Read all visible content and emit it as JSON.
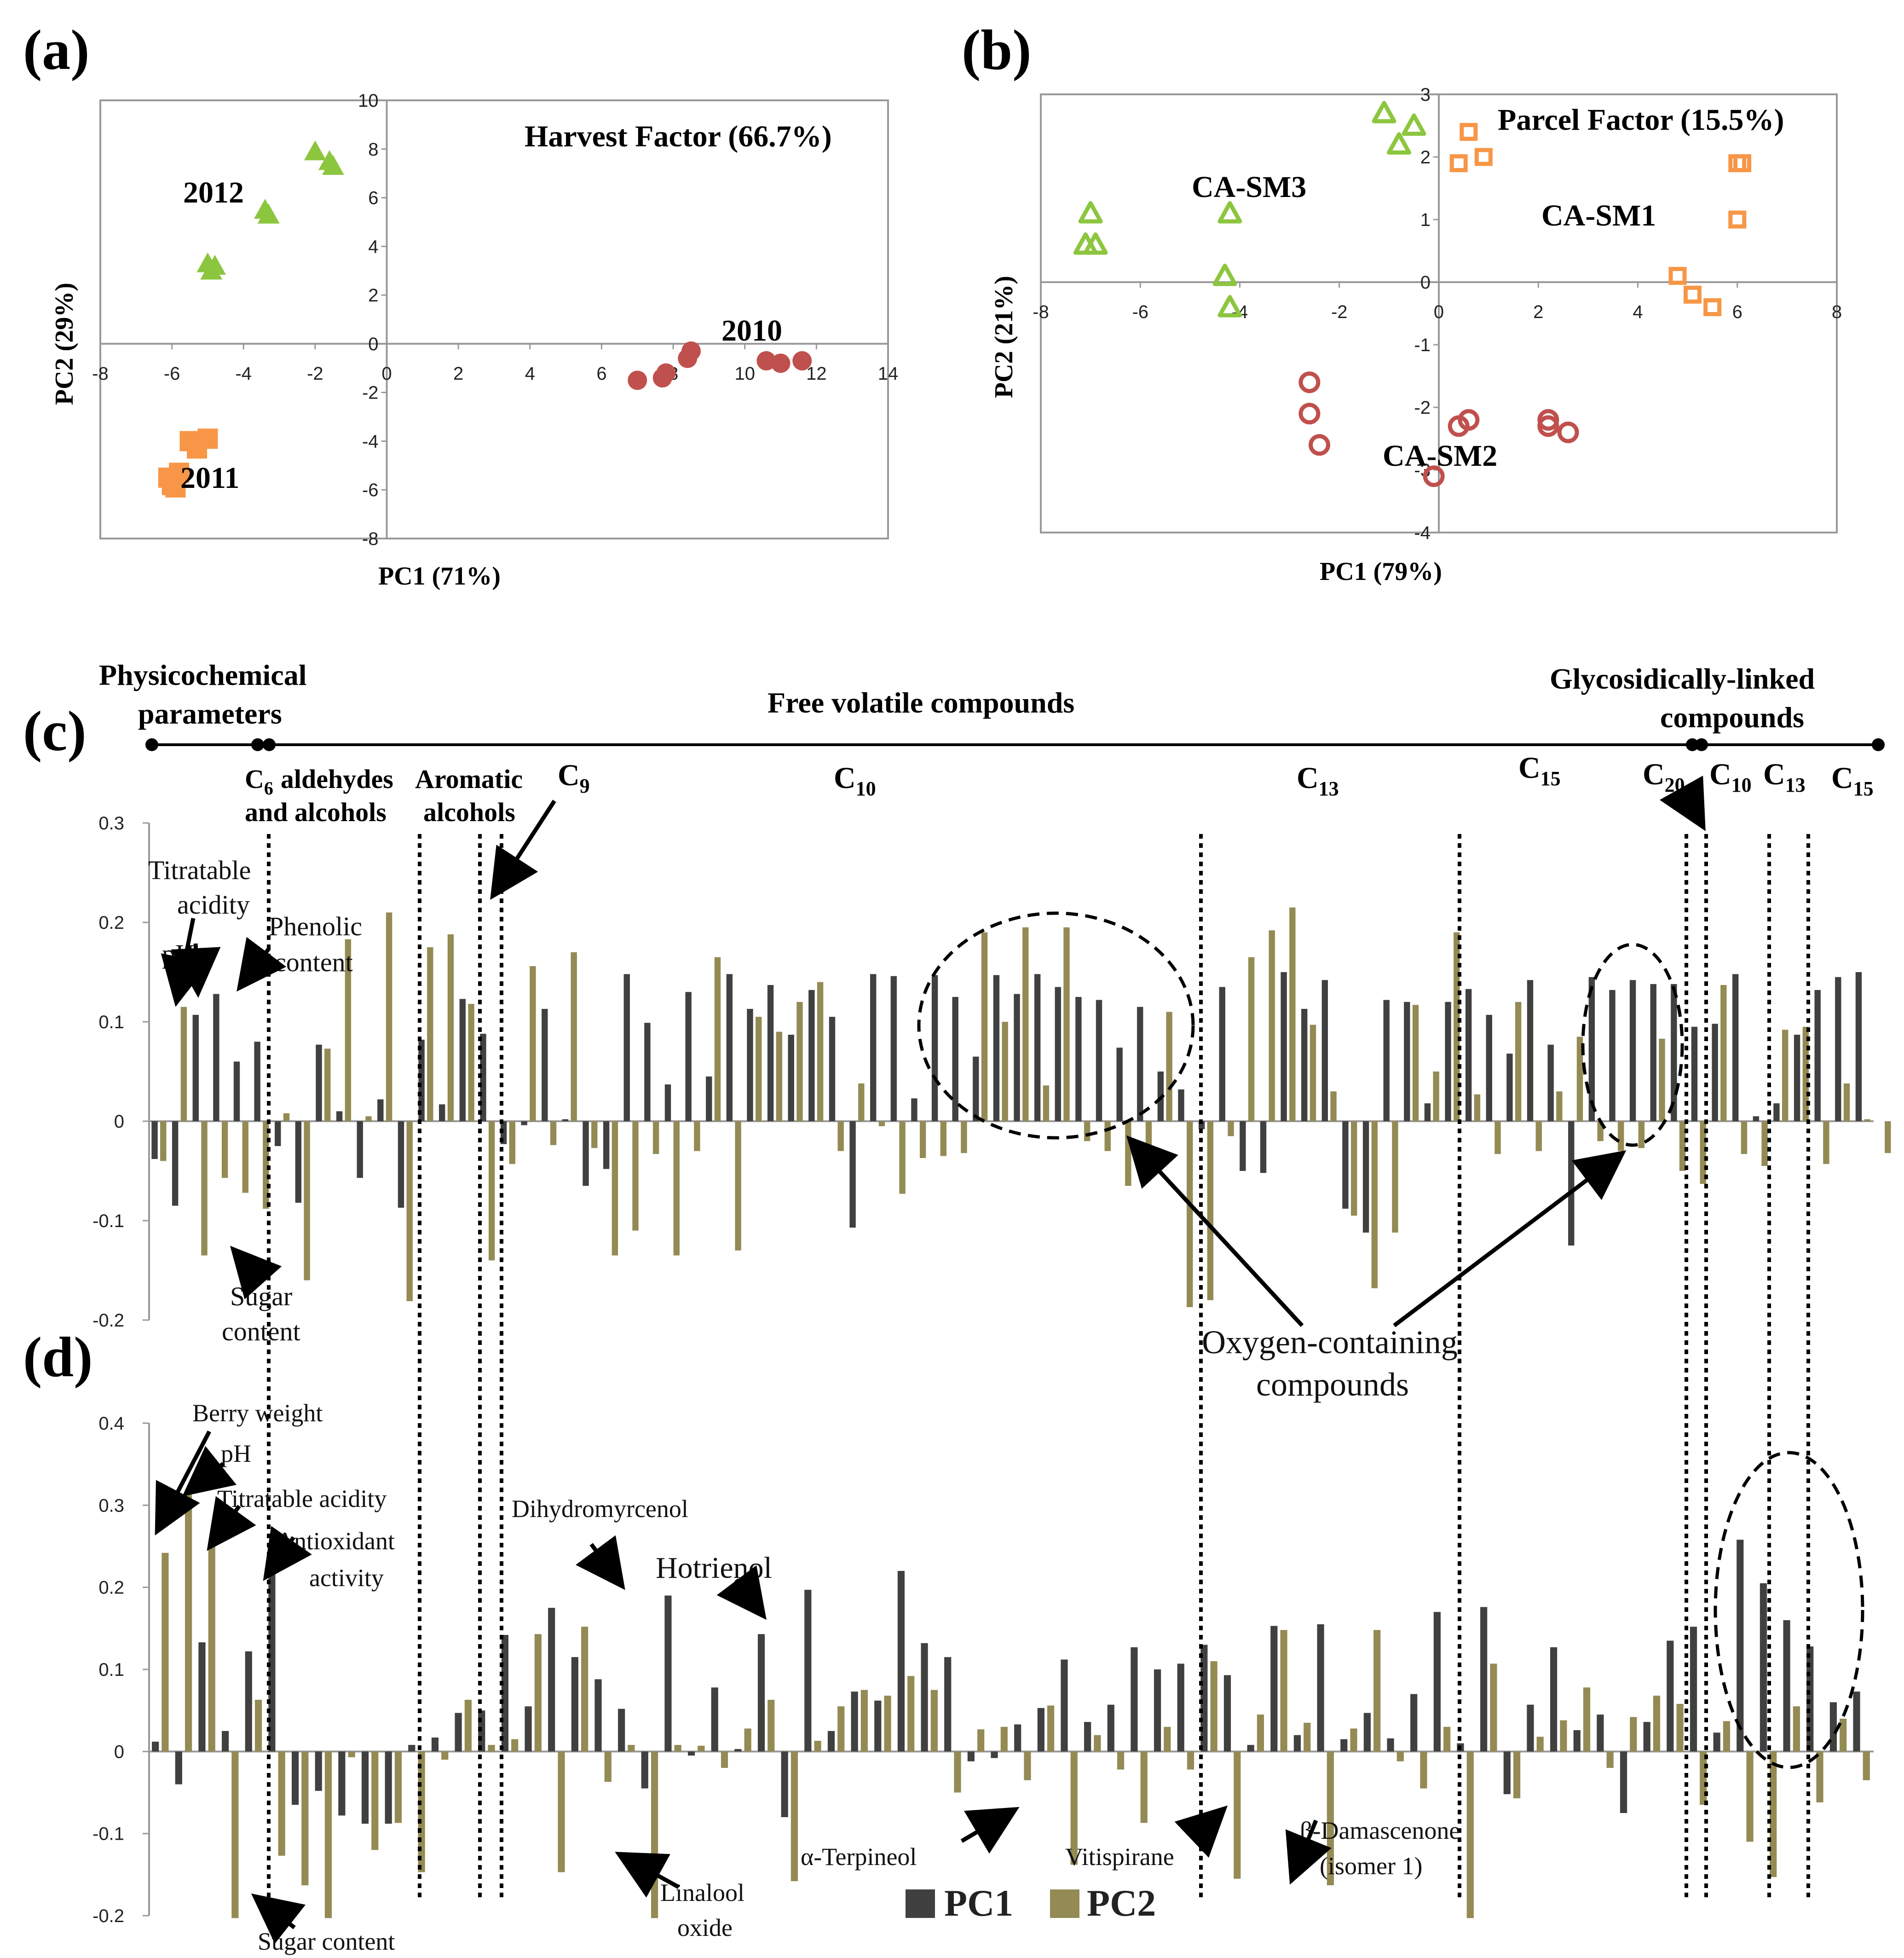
{
  "chart_data": [
    {
      "panel": "(a)",
      "type": "scatter",
      "title": "Harvest Factor (66.7%)",
      "xlabel": "PC1 (71%)",
      "ylabel": "PC2 (29%)",
      "xlim": [
        -8,
        14
      ],
      "ylim": [
        -8,
        10
      ],
      "xticks": [
        -8,
        -6,
        -4,
        -2,
        0,
        2,
        4,
        6,
        8,
        10,
        12,
        14
      ],
      "yticks": [
        -8,
        -6,
        -4,
        -2,
        0,
        2,
        4,
        6,
        8,
        10
      ],
      "series": [
        {
          "name": "2012",
          "marker": "triangle",
          "filled": true,
          "color": "#8cc63f",
          "points": [
            [
              -2.0,
              7.9
            ],
            [
              -1.6,
              7.5
            ],
            [
              -1.5,
              7.3
            ],
            [
              -3.4,
              5.5
            ],
            [
              -3.3,
              5.3
            ],
            [
              -5.0,
              3.3
            ],
            [
              -4.8,
              3.2
            ],
            [
              -4.9,
              3.0
            ]
          ]
        },
        {
          "name": "2011",
          "marker": "square",
          "filled": true,
          "color": "#f79646",
          "points": [
            [
              -5.5,
              -4.0
            ],
            [
              -5.0,
              -3.9
            ],
            [
              -5.3,
              -4.3
            ],
            [
              -6.1,
              -5.5
            ],
            [
              -6.0,
              -5.8
            ],
            [
              -5.9,
              -5.9
            ],
            [
              -5.8,
              -5.3
            ]
          ]
        },
        {
          "name": "2010",
          "marker": "circle",
          "filled": true,
          "color": "#c0504d",
          "points": [
            [
              7.0,
              -1.5
            ],
            [
              7.7,
              -1.4
            ],
            [
              7.8,
              -1.2
            ],
            [
              8.4,
              -0.6
            ],
            [
              8.5,
              -0.3
            ],
            [
              10.6,
              -0.7
            ],
            [
              11.0,
              -0.8
            ],
            [
              11.6,
              -0.7
            ]
          ]
        }
      ],
      "annotations": [
        "2012",
        "2011",
        "2010"
      ]
    },
    {
      "panel": "(b)",
      "type": "scatter",
      "title": "Parcel Factor (15.5%)",
      "xlabel": "PC1 (79%)",
      "ylabel": "PC2 (21%)",
      "xlim": [
        -8,
        8
      ],
      "ylim": [
        -4,
        3
      ],
      "xticks": [
        -8,
        -6,
        -4,
        -2,
        0,
        2,
        4,
        6,
        8
      ],
      "yticks": [
        -4,
        -3,
        -2,
        -1,
        0,
        1,
        2,
        3
      ],
      "series": [
        {
          "name": "CA-SM3",
          "marker": "triangle",
          "filled": false,
          "color": "#8cc63f",
          "points": [
            [
              -1.1,
              2.7
            ],
            [
              -0.5,
              2.5
            ],
            [
              -0.8,
              2.2
            ],
            [
              -7.0,
              1.1
            ],
            [
              -7.1,
              0.6
            ],
            [
              -6.9,
              0.6
            ],
            [
              -4.2,
              1.1
            ],
            [
              -4.3,
              0.1
            ],
            [
              -4.2,
              -0.4
            ]
          ]
        },
        {
          "name": "CA-SM1",
          "marker": "square",
          "filled": false,
          "color": "#f79646",
          "points": [
            [
              0.6,
              2.4
            ],
            [
              0.9,
              2.0
            ],
            [
              0.4,
              1.9
            ],
            [
              6.0,
              1.9
            ],
            [
              6.1,
              1.9
            ],
            [
              6.0,
              1.0
            ],
            [
              4.8,
              0.1
            ],
            [
              5.1,
              -0.2
            ],
            [
              5.5,
              -0.4
            ]
          ]
        },
        {
          "name": "CA-SM2",
          "marker": "circle",
          "filled": false,
          "color": "#c0504d",
          "points": [
            [
              -2.6,
              -1.6
            ],
            [
              -2.6,
              -2.1
            ],
            [
              -2.4,
              -2.6
            ],
            [
              0.4,
              -2.3
            ],
            [
              0.6,
              -2.2
            ],
            [
              2.2,
              -2.2
            ],
            [
              2.2,
              -2.3
            ],
            [
              2.6,
              -2.4
            ],
            [
              -0.1,
              -3.1
            ]
          ]
        }
      ],
      "annotations": [
        "CA-SM3",
        "CA-SM1",
        "CA-SM2"
      ]
    },
    {
      "panel": "(c)",
      "type": "bar",
      "ylim": [
        -0.2,
        0.3
      ],
      "yticks": [
        "0.3",
        "0.2",
        "0.1",
        "0",
        "-0.1",
        "-0.2"
      ],
      "series": [
        {
          "name": "PC1",
          "color": "#404040",
          "values": [
            -0.038,
            -0.085,
            0.107,
            0.128,
            0.06,
            0.08,
            -0.025,
            -0.082,
            0.077,
            0.01,
            -0.057,
            0.022,
            -0.087,
            0.082,
            0.017,
            0.123,
            0.088,
            -0.023,
            -0.004,
            0.113,
            0.002,
            -0.065,
            -0.048,
            0.148,
            0.099,
            0.037,
            0.13,
            0.045,
            0.148,
            0.113,
            0.137,
            0.087,
            0.132,
            0.105,
            -0.107,
            0.148,
            0.146,
            0.023,
            0.147,
            0.125,
            0.065,
            0.147,
            0.128,
            0.148,
            0.135,
            0.125,
            0.122,
            0.074,
            0.115,
            0.05,
            0.032,
            -0.008,
            0.135,
            -0.05,
            -0.052,
            0.15,
            0.113,
            0.142,
            -0.088,
            -0.112,
            0.122,
            0.12,
            0.018,
            0.12,
            0.133,
            0.107,
            0.068,
            0.142,
            0.077,
            -0.125,
            0.145,
            0.132,
            0.142,
            0.138,
            0.138,
            0.095,
            0.098,
            0.148,
            0.005,
            0.018,
            0.087,
            0.132,
            0.145,
            0.15
          ]
        },
        {
          "name": "PC2",
          "color": "#948a54",
          "values": [
            -0.04,
            0.115,
            -0.135,
            -0.057,
            -0.072,
            -0.088,
            0.008,
            -0.16,
            0.073,
            0.183,
            0.005,
            0.21,
            -0.181,
            0.175,
            0.188,
            0.118,
            -0.14,
            -0.043,
            0.156,
            -0.024,
            0.17,
            -0.027,
            -0.135,
            -0.11,
            -0.033,
            -0.135,
            -0.03,
            0.165,
            -0.13,
            0.105,
            0.09,
            0.12,
            0.14,
            -0.03,
            0.038,
            -0.005,
            -0.073,
            -0.037,
            -0.035,
            -0.032,
            0.19,
            0.1,
            0.195,
            0.036,
            0.195,
            -0.02,
            -0.03,
            -0.065,
            -0.047,
            0.11,
            -0.187,
            -0.18,
            -0.015,
            0.165,
            0.192,
            0.215,
            0.097,
            0.03,
            -0.095,
            -0.168,
            -0.112,
            0.117,
            0.05,
            0.19,
            0.027,
            -0.033,
            0.12,
            -0.03,
            0.03,
            0.085,
            -0.02,
            -0.03,
            -0.027,
            0.083,
            -0.05,
            -0.063,
            0.137,
            -0.033,
            -0.045,
            0.092,
            0.095,
            -0.043,
            0.038,
            0.002,
            -0.032
          ]
        }
      ],
      "annotations": [
        "Titratable acidity",
        "pH",
        "Phenolic content",
        "Sugar content",
        "Oxygen-containing compounds"
      ]
    },
    {
      "panel": "(d)",
      "type": "bar",
      "ylim": [
        -0.2,
        0.4
      ],
      "yticks": [
        "0.4",
        "0.3",
        "0.2",
        "0.1",
        "0",
        "-0.1",
        "-0.2"
      ],
      "series": [
        {
          "name": "PC1",
          "color": "#404040",
          "values": [
            0.012,
            -0.04,
            0.133,
            0.025,
            0.122,
            0.248,
            -0.065,
            -0.048,
            -0.078,
            -0.088,
            -0.088,
            0.008,
            0.017,
            0.047,
            0.05,
            0.142,
            0.055,
            0.175,
            0.115,
            0.088,
            0.052,
            -0.045,
            0.19,
            -0.005,
            0.078,
            0.003,
            0.143,
            -0.08,
            0.197,
            0.025,
            0.073,
            0.062,
            0.22,
            0.132,
            0.115,
            -0.012,
            -0.008,
            0.033,
            0.053,
            0.112,
            0.036,
            0.057,
            0.127,
            0.1,
            0.107,
            0.13,
            0.093,
            0.008,
            0.153,
            0.02,
            0.155,
            0.015,
            0.047,
            0.016,
            0.07,
            0.17,
            0.01,
            0.176,
            -0.052,
            0.057,
            0.127,
            0.026,
            0.045,
            -0.075,
            0.036,
            0.135,
            0.152,
            0.023,
            0.258,
            0.205,
            0.16,
            0.128,
            0.06,
            0.073
          ]
        },
        {
          "name": "PC2",
          "color": "#948a54",
          "values": [
            0.242,
            0.313,
            0.25,
            -0.203,
            0.063,
            -0.127,
            -0.163,
            -0.203,
            -0.007,
            -0.12,
            -0.087,
            -0.147,
            -0.01,
            0.063,
            0.008,
            0.015,
            0.143,
            -0.147,
            0.152,
            -0.037,
            0.008,
            -0.203,
            0.008,
            0.007,
            -0.02,
            0.028,
            0.063,
            -0.158,
            0.013,
            0.055,
            0.075,
            0.068,
            0.092,
            0.075,
            -0.05,
            0.027,
            0.03,
            -0.035,
            0.056,
            -0.138,
            0.02,
            -0.022,
            -0.087,
            0.03,
            -0.022,
            0.11,
            -0.155,
            0.045,
            0.148,
            0.035,
            -0.163,
            0.028,
            0.148,
            -0.012,
            -0.045,
            0.03,
            -0.203,
            0.107,
            -0.057,
            0.018,
            0.038,
            0.078,
            -0.02,
            0.042,
            0.068,
            0.058,
            -0.065,
            0.037,
            -0.11,
            -0.153,
            0.055,
            -0.062,
            0.04,
            -0.035
          ]
        }
      ],
      "annotations": [
        "Berry weight",
        "pH",
        "Titratable acidity",
        "Antioxidant activity",
        "Sugar content",
        "Dihydromyrcenol",
        "Hotrienol",
        "Linalool oxide",
        "α-Terpineol",
        "Vitispirane",
        "β-Damascenone (isomer 1)"
      ]
    }
  ],
  "panels": {
    "a": {
      "letter": "(a)",
      "title": "Harvest Factor (66.7%)",
      "xlabel": "PC1 (71%)",
      "ylabel": "PC2 (29%)",
      "lbl2012": "2012",
      "lbl2011": "2011",
      "lbl2010": "2010"
    },
    "b": {
      "letter": "(b)",
      "title": "Parcel Factor (15.5%)",
      "xlabel": "PC1 (79%)",
      "ylabel": "PC2 (21%)",
      "sm3": "CA-SM3",
      "sm1": "CA-SM1",
      "sm2": "CA-SM2"
    },
    "c": {
      "letter": "(c)",
      "group_physico": "Physicochemical parameters",
      "group_physico_1": "Physicochemical",
      "group_physico_2": "parameters",
      "group_free": "Free volatile compounds",
      "group_glyco_1": "Glycosidically-linked",
      "group_glyco_2": "compounds",
      "sec_c6_1": "aldehydes",
      "sec_c6_2": "and alcohols",
      "sec_arom_1": "Aromatic",
      "sec_arom_2": "alcohols",
      "c_letter": "C",
      "sub_6": "6",
      "sub_9": "9",
      "sub_10": "10",
      "sub_13": "13",
      "sub_15": "15",
      "sub_20": "20",
      "ann_titratable_1": "Titratable",
      "ann_titratable_2": "acidity",
      "ann_ph": "pH",
      "ann_phenolic_1": "Phenolic",
      "ann_phenolic_2": "content",
      "ann_sugar_1": "Sugar",
      "ann_sugar_2": "content",
      "ann_oxygen_1": "Oxygen-containing",
      "ann_oxygen_2": "compounds"
    },
    "d": {
      "letter": "(d)",
      "ann_berry": "Berry weight",
      "ann_ph": "pH",
      "ann_titratable": "Titratable acidity",
      "ann_antiox_1": "Antioxidant",
      "ann_antiox_2": "activity",
      "ann_sugar": "Sugar content",
      "ann_dihydro": "Dihydromyrcenol",
      "ann_hotrienol": "Hotrienol",
      "ann_linalool_1": "Linalool",
      "ann_linalool_2": "oxide",
      "ann_terpineol": "α-Terpineol",
      "ann_vitispirane": "Vitispirane",
      "ann_damascenone_1": "β-Damascenone",
      "ann_damascenone_2": "(isomer 1)"
    },
    "legend": {
      "pc1": "PC1",
      "pc2": "PC2",
      "pc1_color": "#404040",
      "pc2_color": "#948a54"
    }
  }
}
